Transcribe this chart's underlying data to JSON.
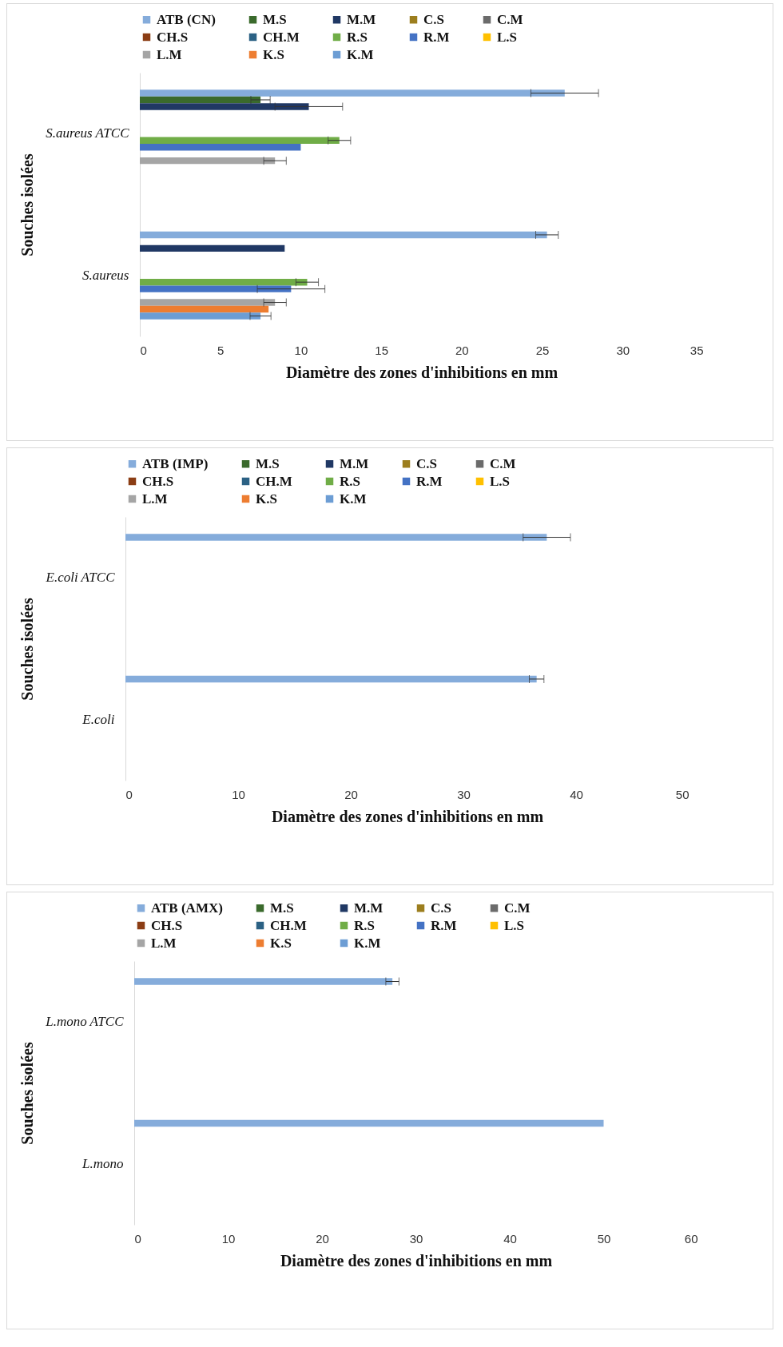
{
  "chart_data": [
    {
      "type": "bar",
      "orientation": "horizontal",
      "categories": [
        "S.aureus ATCC",
        "S.aureus"
      ],
      "xlabel": "Diamètre des zones d'inhibitions en mm",
      "ylabel": "Souches isolées",
      "xlim": [
        0,
        35
      ],
      "xticks": [
        0,
        5,
        10,
        15,
        20,
        25,
        30,
        35
      ],
      "legend": "top",
      "series": [
        {
          "name": "ATB (CN)",
          "color": "#85acdb",
          "values": [
            26.4,
            25.3
          ],
          "errors": [
            2.1,
            0.7
          ]
        },
        {
          "name": "M.S",
          "color": "#3a6a2c",
          "values": [
            7.5,
            null
          ],
          "errors": [
            0.6,
            null
          ]
        },
        {
          "name": "M.M",
          "color": "#203864",
          "values": [
            10.5,
            9.0
          ],
          "errors": [
            2.1,
            null
          ]
        },
        {
          "name": "C.S",
          "color": "#9c7e1e",
          "values": [
            null,
            null
          ]
        },
        {
          "name": "C.M",
          "color": "#6b6b6b",
          "values": [
            null,
            null
          ]
        },
        {
          "name": "CH.S",
          "color": "#8b3d14",
          "values": [
            null,
            null
          ]
        },
        {
          "name": "CH.M",
          "color": "#2b6184",
          "values": [
            null,
            null
          ]
        },
        {
          "name": "R.S",
          "color": "#70ad47",
          "values": [
            12.4,
            10.4
          ],
          "errors": [
            0.7,
            0.7
          ]
        },
        {
          "name": "R.M",
          "color": "#4472c4",
          "values": [
            10.0,
            9.4
          ],
          "errors": [
            null,
            2.1
          ]
        },
        {
          "name": "L.S",
          "color": "#ffc000",
          "values": [
            null,
            null
          ]
        },
        {
          "name": "L.M",
          "color": "#a5a5a5",
          "values": [
            8.4,
            8.4
          ],
          "errors": [
            0.7,
            0.7
          ]
        },
        {
          "name": "K.S",
          "color": "#ed7d31",
          "values": [
            null,
            8.0
          ]
        },
        {
          "name": "K.M",
          "color": "#6c9dd4",
          "values": [
            null,
            7.5
          ],
          "errors": [
            null,
            0.65
          ]
        }
      ]
    },
    {
      "type": "bar",
      "orientation": "horizontal",
      "categories": [
        "E.coli ATCC",
        "E.coli"
      ],
      "xlabel": "Diamètre des zones d'inhibitions en mm",
      "ylabel": "Souches isolées",
      "xlim": [
        0,
        50
      ],
      "xticks": [
        0,
        10,
        20,
        30,
        40,
        50
      ],
      "legend": "top",
      "series": [
        {
          "name": "ATB (IMP)",
          "color": "#85acdb",
          "values": [
            37.4,
            36.5
          ],
          "errors": [
            2.1,
            0.65
          ]
        },
        {
          "name": "M.S",
          "color": "#3a6a2c",
          "values": [
            null,
            null
          ]
        },
        {
          "name": "M.M",
          "color": "#203864",
          "values": [
            null,
            null
          ]
        },
        {
          "name": "C.S",
          "color": "#9c7e1e",
          "values": [
            null,
            null
          ]
        },
        {
          "name": "C.M",
          "color": "#6b6b6b",
          "values": [
            null,
            null
          ]
        },
        {
          "name": "CH.S",
          "color": "#8b3d14",
          "values": [
            null,
            null
          ]
        },
        {
          "name": "CH.M",
          "color": "#2b6184",
          "values": [
            null,
            null
          ]
        },
        {
          "name": "R.S",
          "color": "#70ad47",
          "values": [
            null,
            null
          ]
        },
        {
          "name": "R.M",
          "color": "#4472c4",
          "values": [
            null,
            null
          ]
        },
        {
          "name": "L.S",
          "color": "#ffc000",
          "values": [
            null,
            null
          ]
        },
        {
          "name": "L.M",
          "color": "#a5a5a5",
          "values": [
            null,
            null
          ]
        },
        {
          "name": "K.S",
          "color": "#ed7d31",
          "values": [
            null,
            null
          ]
        },
        {
          "name": "K.M",
          "color": "#6c9dd4",
          "values": [
            null,
            null
          ]
        }
      ]
    },
    {
      "type": "bar",
      "orientation": "horizontal",
      "categories": [
        "L.mono ATCC",
        "L.mono"
      ],
      "xlabel": "Diamètre des zones d'inhibitions en mm",
      "ylabel": "Souches isolées",
      "xlim": [
        0,
        60
      ],
      "xticks": [
        0,
        10,
        20,
        30,
        40,
        50,
        60
      ],
      "legend": "top",
      "series": [
        {
          "name": "ATB (AMX)",
          "color": "#85acdb",
          "values": [
            27.5,
            50.0
          ],
          "errors": [
            0.7,
            null
          ]
        },
        {
          "name": "M.S",
          "color": "#3a6a2c",
          "values": [
            null,
            null
          ]
        },
        {
          "name": "M.M",
          "color": "#203864",
          "values": [
            null,
            null
          ]
        },
        {
          "name": "C.S",
          "color": "#9c7e1e",
          "values": [
            null,
            null
          ]
        },
        {
          "name": "C.M",
          "color": "#6b6b6b",
          "values": [
            null,
            null
          ]
        },
        {
          "name": "CH.S",
          "color": "#8b3d14",
          "values": [
            null,
            null
          ]
        },
        {
          "name": "CH.M",
          "color": "#2b6184",
          "values": [
            null,
            null
          ]
        },
        {
          "name": "R.S",
          "color": "#70ad47",
          "values": [
            null,
            null
          ]
        },
        {
          "name": "R.M",
          "color": "#4472c4",
          "values": [
            null,
            null
          ]
        },
        {
          "name": "L.S",
          "color": "#ffc000",
          "values": [
            null,
            null
          ]
        },
        {
          "name": "L.M",
          "color": "#a5a5a5",
          "values": [
            null,
            null
          ]
        },
        {
          "name": "K.S",
          "color": "#ed7d31",
          "values": [
            null,
            null
          ]
        },
        {
          "name": "K.M",
          "color": "#6c9dd4",
          "values": [
            null,
            null
          ]
        }
      ]
    }
  ]
}
